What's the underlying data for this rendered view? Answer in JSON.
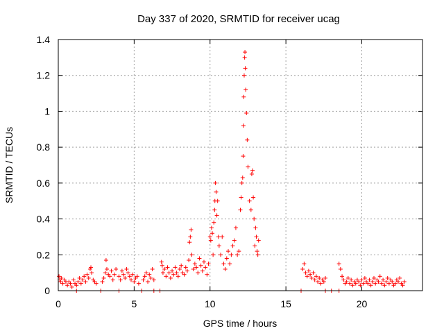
{
  "chart_data": {
    "type": "scatter",
    "title": "Day 337 of 2020, SRMTID for receiver ucag",
    "xlabel": "GPS time / hours",
    "ylabel": "SRMTID / TECUs",
    "xlim": [
      0,
      24
    ],
    "ylim": [
      0,
      1.4
    ],
    "xticks": [
      0,
      5,
      10,
      15,
      20
    ],
    "xtick_labels": [
      "0",
      "5",
      "10",
      "15",
      "20"
    ],
    "yticks": [
      0,
      0.2,
      0.4,
      0.6,
      0.8,
      1.0,
      1.2,
      1.4
    ],
    "ytick_labels": [
      "0",
      "0.2",
      "0.4",
      "0.6",
      "0.8",
      "1",
      "1.2",
      "1.4"
    ],
    "grid": true,
    "marker": "+",
    "color": "#ff0000",
    "series": [
      {
        "name": "SRMTID",
        "x": [
          0.05,
          0.1,
          0.15,
          0.2,
          0.3,
          0.4,
          0.5,
          0.6,
          0.7,
          0.8,
          0.9,
          1.0,
          1.1,
          1.2,
          1.3,
          1.4,
          1.5,
          1.6,
          1.7,
          1.8,
          1.9,
          2.0,
          2.1,
          2.15,
          2.2,
          2.3,
          2.4,
          2.5,
          2.9,
          3.0,
          3.1,
          3.15,
          3.2,
          3.3,
          3.4,
          3.5,
          3.6,
          3.7,
          3.8,
          4.0,
          4.1,
          4.2,
          4.3,
          4.4,
          4.5,
          4.6,
          4.7,
          4.8,
          4.9,
          5.0,
          5.1,
          5.2,
          5.3,
          5.6,
          5.7,
          5.8,
          5.9,
          6.0,
          6.1,
          6.2,
          6.3,
          6.8,
          6.85,
          6.9,
          7.0,
          7.1,
          7.2,
          7.3,
          7.4,
          7.5,
          7.6,
          7.7,
          7.8,
          7.9,
          8.0,
          8.1,
          8.2,
          8.3,
          8.4,
          8.5,
          8.6,
          8.65,
          8.7,
          8.75,
          8.8,
          8.9,
          9.0,
          9.1,
          9.2,
          9.3,
          9.4,
          9.5,
          9.6,
          9.7,
          9.8,
          9.9,
          10.0,
          10.05,
          10.1,
          10.15,
          10.2,
          10.25,
          10.3,
          10.32,
          10.35,
          10.4,
          10.45,
          10.5,
          10.55,
          10.6,
          10.7,
          10.8,
          10.9,
          11.0,
          11.1,
          11.2,
          11.3,
          11.4,
          11.5,
          11.6,
          11.7,
          11.8,
          11.9,
          12.0,
          12.05,
          12.1,
          12.15,
          12.18,
          12.2,
          12.22,
          12.25,
          12.28,
          12.3,
          12.32,
          12.35,
          12.4,
          12.45,
          12.5,
          12.6,
          12.7,
          12.75,
          12.8,
          12.85,
          12.9,
          12.95,
          13.0,
          13.05,
          13.1,
          13.15,
          13.2,
          16.1,
          16.2,
          16.3,
          16.4,
          16.5,
          16.6,
          16.7,
          16.8,
          16.9,
          17.0,
          17.1,
          17.2,
          17.3,
          17.4,
          17.5,
          17.6,
          18.5,
          18.6,
          18.7,
          18.8,
          18.9,
          19.0,
          19.1,
          19.2,
          19.3,
          19.4,
          19.5,
          19.6,
          19.7,
          19.8,
          19.9,
          20.0,
          20.1,
          20.2,
          20.3,
          20.4,
          20.5,
          20.6,
          20.7,
          20.8,
          20.9,
          21.0,
          21.1,
          21.2,
          21.3,
          21.4,
          21.5,
          21.6,
          21.7,
          21.8,
          21.9,
          22.0,
          22.1,
          22.2,
          22.3,
          22.4,
          22.5,
          22.6,
          22.7,
          22.8,
          1.2,
          2.8,
          4.0,
          5.5,
          6.3,
          6.7,
          16.0,
          17.6,
          18.0,
          18.5
        ],
        "y": [
          0.08,
          0.06,
          0.05,
          0.07,
          0.04,
          0.06,
          0.05,
          0.03,
          0.05,
          0.04,
          0.02,
          0.06,
          0.04,
          0.03,
          0.05,
          0.07,
          0.04,
          0.06,
          0.08,
          0.05,
          0.09,
          0.07,
          0.12,
          0.13,
          0.1,
          0.06,
          0.05,
          0.04,
          0.05,
          0.07,
          0.1,
          0.17,
          0.12,
          0.09,
          0.08,
          0.11,
          0.06,
          0.09,
          0.12,
          0.08,
          0.06,
          0.11,
          0.09,
          0.07,
          0.12,
          0.1,
          0.08,
          0.06,
          0.09,
          0.05,
          0.07,
          0.08,
          0.04,
          0.06,
          0.08,
          0.1,
          0.05,
          0.09,
          0.07,
          0.12,
          0.06,
          0.16,
          0.14,
          0.1,
          0.12,
          0.08,
          0.13,
          0.1,
          0.07,
          0.11,
          0.09,
          0.13,
          0.1,
          0.08,
          0.12,
          0.14,
          0.1,
          0.09,
          0.13,
          0.11,
          0.17,
          0.27,
          0.3,
          0.34,
          0.2,
          0.12,
          0.15,
          0.13,
          0.1,
          0.18,
          0.14,
          0.11,
          0.16,
          0.13,
          0.09,
          0.15,
          0.3,
          0.28,
          0.35,
          0.32,
          0.2,
          0.38,
          0.45,
          0.5,
          0.6,
          0.55,
          0.42,
          0.5,
          0.3,
          0.25,
          0.2,
          0.3,
          0.15,
          0.12,
          0.18,
          0.22,
          0.15,
          0.2,
          0.25,
          0.28,
          0.35,
          0.2,
          0.22,
          0.45,
          0.52,
          0.6,
          0.63,
          0.75,
          0.92,
          1.08,
          1.2,
          1.3,
          1.33,
          1.24,
          1.12,
          0.99,
          0.84,
          0.69,
          0.5,
          0.45,
          0.65,
          0.67,
          0.52,
          0.4,
          0.25,
          0.35,
          0.3,
          0.22,
          0.2,
          0.28,
          0.12,
          0.15,
          0.1,
          0.08,
          0.11,
          0.09,
          0.07,
          0.1,
          0.06,
          0.08,
          0.05,
          0.07,
          0.04,
          0.06,
          0.05,
          0.07,
          0.15,
          0.12,
          0.08,
          0.06,
          0.04,
          0.05,
          0.07,
          0.04,
          0.06,
          0.03,
          0.05,
          0.04,
          0.06,
          0.05,
          0.03,
          0.06,
          0.04,
          0.07,
          0.05,
          0.04,
          0.06,
          0.03,
          0.05,
          0.07,
          0.04,
          0.06,
          0.05,
          0.08,
          0.04,
          0.06,
          0.03,
          0.05,
          0.07,
          0.04,
          0.06,
          0.05,
          0.03,
          0.04,
          0.06,
          0.05,
          0.07,
          0.04,
          0.03,
          0.05,
          0.0,
          0.0,
          0.0,
          0.0,
          0.0,
          0.0,
          0.0,
          0.0,
          0.0,
          0.0
        ]
      }
    ]
  }
}
